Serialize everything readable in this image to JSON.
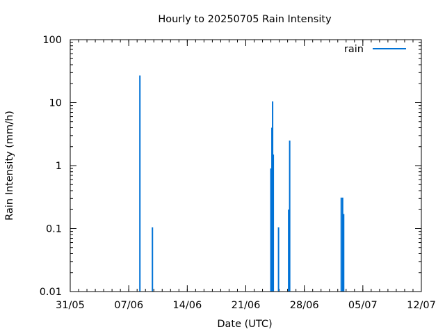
{
  "chart_data": {
    "type": "bar",
    "title": "Hourly to 20250705 Rain Intensity",
    "xlabel": "Date (UTC)",
    "ylabel": "Rain Intensity (mm/h)",
    "y_scale": "log",
    "ylim": [
      0.01,
      100
    ],
    "y_ticks": [
      {
        "value": 0.01,
        "label": "0.01"
      },
      {
        "value": 0.1,
        "label": "0.1"
      },
      {
        "value": 1,
        "label": "1"
      },
      {
        "value": 10,
        "label": "10"
      },
      {
        "value": 100,
        "label": "100"
      }
    ],
    "xlim": [
      "2025-05-31T00:00",
      "2025-07-12T00:00"
    ],
    "x_ticks": [
      {
        "value": "2025-05-31T00:00",
        "label": "31/05"
      },
      {
        "value": "2025-06-07T00:00",
        "label": "07/06"
      },
      {
        "value": "2025-06-14T00:00",
        "label": "14/06"
      },
      {
        "value": "2025-06-21T00:00",
        "label": "21/06"
      },
      {
        "value": "2025-06-28T00:00",
        "label": "28/06"
      },
      {
        "value": "2025-07-05T00:00",
        "label": "05/07"
      },
      {
        "value": "2025-07-12T00:00",
        "label": "12/07"
      }
    ],
    "grid": false,
    "legend_position": "top-right",
    "series": [
      {
        "name": "rain",
        "color": "#0072d6",
        "points": [
          {
            "x": "2025-06-08T08:00",
            "y": 27
          },
          {
            "x": "2025-06-09T20:00",
            "y": 0.105
          },
          {
            "x": "2025-06-24T00:00",
            "y": 0.9
          },
          {
            "x": "2025-06-24T03:00",
            "y": 4
          },
          {
            "x": "2025-06-24T05:00",
            "y": 10.5
          },
          {
            "x": "2025-06-24T07:00",
            "y": 1.5
          },
          {
            "x": "2025-06-24T22:00",
            "y": 0.105
          },
          {
            "x": "2025-06-26T03:00",
            "y": 0.2
          },
          {
            "x": "2025-06-26T06:00",
            "y": 2.5
          },
          {
            "x": "2025-07-02T10:00",
            "y": 0.31
          },
          {
            "x": "2025-07-02T14:00",
            "y": 0.31
          },
          {
            "x": "2025-07-02T17:00",
            "y": 0.17
          }
        ]
      }
    ]
  }
}
